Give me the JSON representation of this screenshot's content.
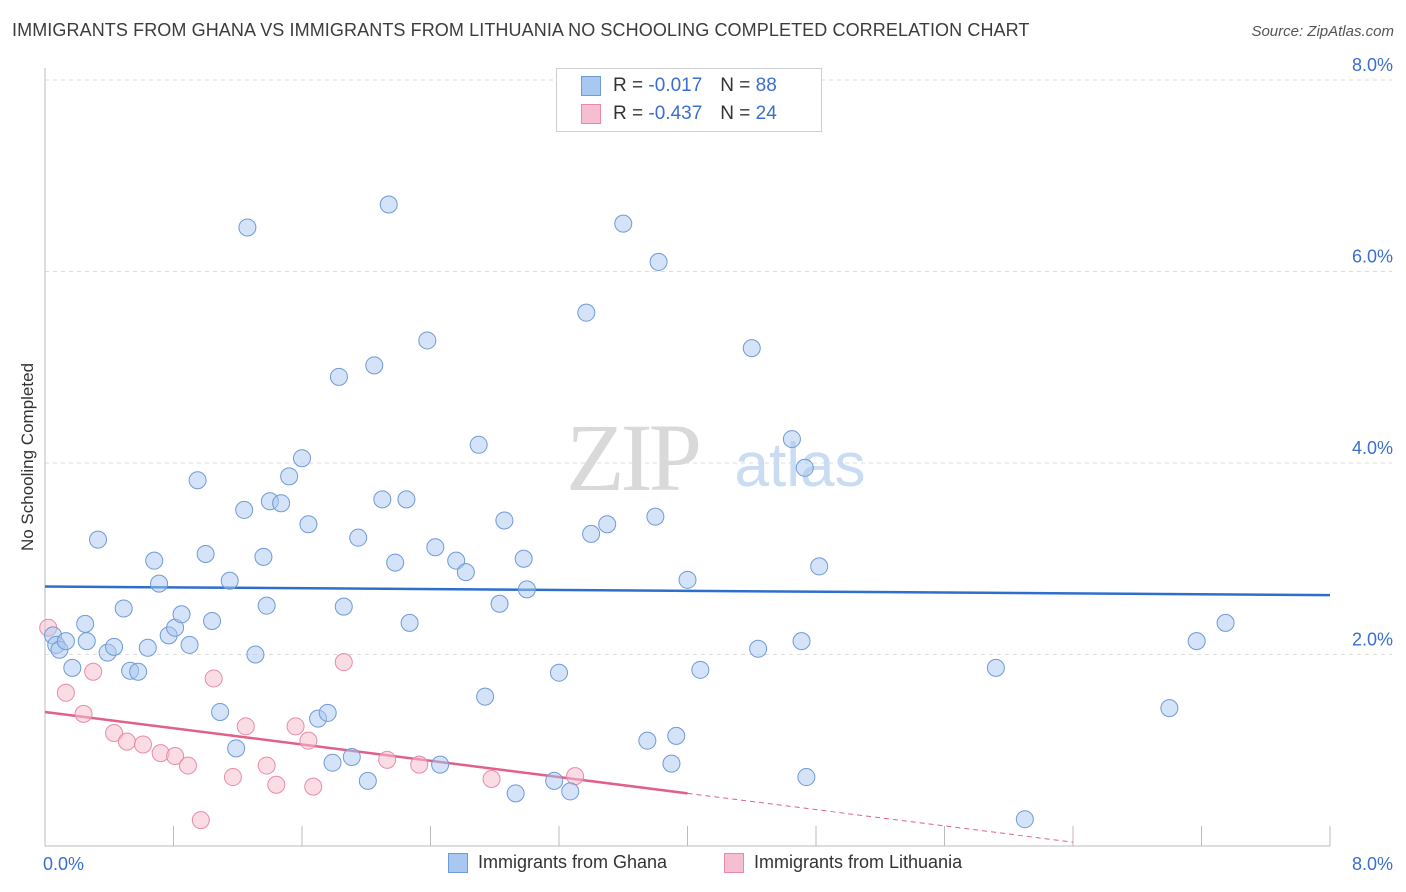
{
  "title": "IMMIGRANTS FROM GHANA VS IMMIGRANTS FROM LITHUANIA NO SCHOOLING COMPLETED CORRELATION CHART",
  "source": "Source: ZipAtlas.com",
  "watermark": {
    "zip": "ZIP",
    "atlas": "atlas"
  },
  "legend_top": [
    {
      "r_label": "R =",
      "r_value": "-0.017",
      "n_label": "N =",
      "n_value": "88"
    },
    {
      "r_label": "R =",
      "r_value": "-0.437",
      "n_label": "N =",
      "n_value": "24"
    }
  ],
  "legend_bottom": [
    "Immigrants from Ghana",
    "Immigrants from Lithuania"
  ],
  "colors": {
    "ghana_fill": "#a9c8f0",
    "ghana_stroke": "#6f9bd6",
    "ghana_line": "#2f6fcc",
    "lith_fill": "#f6bfd0",
    "lith_stroke": "#ea8aa8",
    "lith_line": "#e0608a",
    "tick_label": "#3a6fce",
    "grid": "#dcdcdc"
  },
  "chart_data": {
    "type": "scatter",
    "title": "IMMIGRANTS FROM GHANA VS IMMIGRANTS FROM LITHUANIA NO SCHOOLING COMPLETED CORRELATION CHART",
    "xlabel": "",
    "ylabel": "No Schooling Completed",
    "xlim": [
      0,
      8
    ],
    "ylim": [
      0,
      8
    ],
    "x_tick_labels": [
      "0.0%",
      "8.0%"
    ],
    "y_ticks": [
      2,
      4,
      6,
      8
    ],
    "y_tick_labels": [
      "2.0%",
      "4.0%",
      "6.0%",
      "8.0%"
    ],
    "grid": true,
    "series": [
      {
        "name": "Immigrants from Ghana",
        "r": -0.017,
        "n": 88,
        "trend": {
          "x": [
            0,
            8
          ],
          "y": [
            2.71,
            2.62
          ]
        },
        "points": [
          [
            0.05,
            2.2
          ],
          [
            0.07,
            2.1
          ],
          [
            0.09,
            2.05
          ],
          [
            0.13,
            2.14
          ],
          [
            0.17,
            1.86
          ],
          [
            0.26,
            2.14
          ],
          [
            0.33,
            3.2
          ],
          [
            0.39,
            2.02
          ],
          [
            0.43,
            2.08
          ],
          [
            0.49,
            2.48
          ],
          [
            0.53,
            1.83
          ],
          [
            0.58,
            1.82
          ],
          [
            0.64,
            2.07
          ],
          [
            0.68,
            2.98
          ],
          [
            0.71,
            2.74
          ],
          [
            0.77,
            2.2
          ],
          [
            0.81,
            2.28
          ],
          [
            0.85,
            2.42
          ],
          [
            0.9,
            2.1
          ],
          [
            0.95,
            3.82
          ],
          [
            1.0,
            3.05
          ],
          [
            1.04,
            2.35
          ],
          [
            1.09,
            1.4
          ],
          [
            1.15,
            2.77
          ],
          [
            1.19,
            1.02
          ],
          [
            1.24,
            3.51
          ],
          [
            1.31,
            2.0
          ],
          [
            1.36,
            3.02
          ],
          [
            1.38,
            2.51
          ],
          [
            1.4,
            3.6
          ],
          [
            1.47,
            3.58
          ],
          [
            1.52,
            3.86
          ],
          [
            1.6,
            4.05
          ],
          [
            1.64,
            3.36
          ],
          [
            1.7,
            1.33
          ],
          [
            1.76,
            1.39
          ],
          [
            1.79,
            0.87
          ],
          [
            1.83,
            4.9
          ],
          [
            1.86,
            2.5
          ],
          [
            1.91,
            0.93
          ],
          [
            1.95,
            3.22
          ],
          [
            2.01,
            0.68
          ],
          [
            2.05,
            5.02
          ],
          [
            2.1,
            3.62
          ],
          [
            2.18,
            2.96
          ],
          [
            2.25,
            3.62
          ],
          [
            2.27,
            2.33
          ],
          [
            2.38,
            5.28
          ],
          [
            2.43,
            3.12
          ],
          [
            2.46,
            0.85
          ],
          [
            2.56,
            2.98
          ],
          [
            2.62,
            2.86
          ],
          [
            2.7,
            4.19
          ],
          [
            2.74,
            1.56
          ],
          [
            2.83,
            2.53
          ],
          [
            2.86,
            3.4
          ],
          [
            2.93,
            0.55
          ],
          [
            2.98,
            3.0
          ],
          [
            3.0,
            2.68
          ],
          [
            3.17,
            0.68
          ],
          [
            3.2,
            1.81
          ],
          [
            3.27,
            0.57
          ],
          [
            3.37,
            5.57
          ],
          [
            3.4,
            3.26
          ],
          [
            3.5,
            3.36
          ],
          [
            3.6,
            6.5
          ],
          [
            3.75,
            1.1
          ],
          [
            3.8,
            3.44
          ],
          [
            3.82,
            6.1
          ],
          [
            3.9,
            0.86
          ],
          [
            3.93,
            1.15
          ],
          [
            4.0,
            2.78
          ],
          [
            4.08,
            1.84
          ],
          [
            4.4,
            5.2
          ],
          [
            4.44,
            2.06
          ],
          [
            4.65,
            4.25
          ],
          [
            4.74,
            0.72
          ],
          [
            4.82,
            2.92
          ],
          [
            5.92,
            1.86
          ],
          [
            6.1,
            0.28
          ],
          [
            7.0,
            1.44
          ],
          [
            7.17,
            2.14
          ],
          [
            7.35,
            2.33
          ],
          [
            2.14,
            6.7
          ],
          [
            1.26,
            6.46
          ],
          [
            0.25,
            2.32
          ],
          [
            4.73,
            3.95
          ],
          [
            4.71,
            2.14
          ]
        ]
      },
      {
        "name": "Immigrants from Lithuania",
        "r": -0.437,
        "n": 24,
        "trend": {
          "x": [
            0,
            4.0
          ],
          "y": [
            1.4,
            0.55
          ]
        },
        "trend_dashed": {
          "x": [
            4.0,
            6.4
          ],
          "y": [
            0.55,
            0.04
          ]
        },
        "points": [
          [
            0.02,
            2.28
          ],
          [
            0.13,
            1.6
          ],
          [
            0.24,
            1.38
          ],
          [
            0.3,
            1.82
          ],
          [
            0.43,
            1.18
          ],
          [
            0.51,
            1.09
          ],
          [
            0.61,
            1.06
          ],
          [
            0.72,
            0.97
          ],
          [
            0.81,
            0.94
          ],
          [
            0.89,
            0.84
          ],
          [
            0.97,
            0.27
          ],
          [
            1.05,
            1.75
          ],
          [
            1.17,
            0.72
          ],
          [
            1.25,
            1.25
          ],
          [
            1.38,
            0.84
          ],
          [
            1.44,
            0.64
          ],
          [
            1.56,
            1.25
          ],
          [
            1.64,
            1.1
          ],
          [
            1.67,
            0.62
          ],
          [
            1.86,
            1.92
          ],
          [
            2.13,
            0.9
          ],
          [
            2.33,
            0.85
          ],
          [
            2.78,
            0.7
          ],
          [
            3.3,
            0.73
          ]
        ]
      }
    ]
  }
}
